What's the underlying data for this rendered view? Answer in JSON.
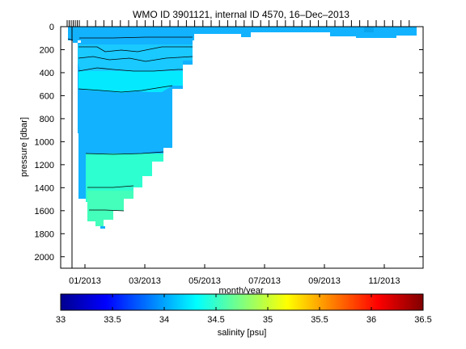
{
  "chart_data": {
    "type": "heatmap",
    "title": "WMO ID 3901121, internal ID 4570, 16–Dec–2013",
    "xlabel": "month/year",
    "ylabel": "pressure [dbar]",
    "x_tick_labels": [
      "01/2013",
      "03/2013",
      "05/2013",
      "07/2013",
      "09/2013",
      "11/2013"
    ],
    "y_tick_labels": [
      "0",
      "200",
      "400",
      "600",
      "800",
      "1000",
      "1200",
      "1400",
      "1600",
      "1800",
      "2000"
    ],
    "y_ticks": [
      0,
      200,
      400,
      600,
      800,
      1000,
      1200,
      1400,
      1600,
      1800,
      2000
    ],
    "ylim": [
      0,
      2100
    ],
    "y_reversed": true,
    "colorbar": {
      "label": "salinity [psu]",
      "range": [
        33,
        36.5
      ],
      "tick_labels": [
        "33",
        "33.5",
        "34",
        "34.5",
        "35",
        "35.5",
        "36",
        "36.5"
      ],
      "ticks": [
        33,
        33.5,
        34,
        34.5,
        35,
        35.5,
        36,
        36.5
      ],
      "colormap": "jet"
    },
    "salinity_bands": [
      {
        "from_dbar": 0,
        "to_dbar": 50,
        "salinity": 33.9
      },
      {
        "from_dbar": 50,
        "to_dbar": 300,
        "salinity": 34.25
      },
      {
        "from_dbar": 300,
        "to_dbar": 500,
        "salinity": 34.4
      },
      {
        "from_dbar": 500,
        "to_dbar": 1050,
        "salinity": 34.25
      },
      {
        "from_dbar": 1050,
        "to_dbar": 1400,
        "salinity": 34.45
      },
      {
        "from_dbar": 1400,
        "to_dbar": 1600,
        "salinity": 34.6
      },
      {
        "from_dbar": 1600,
        "to_dbar": 1750,
        "salinity": 34.7
      }
    ],
    "colors": {
      "upper_layer": "#12b2ff",
      "lower_layer": "#2effd0"
    }
  }
}
